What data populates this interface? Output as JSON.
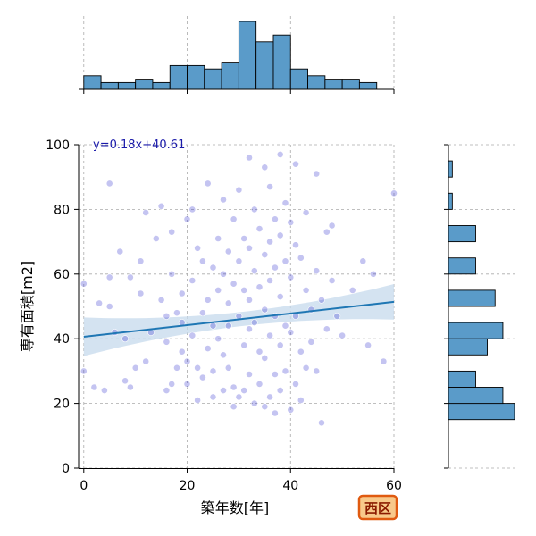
{
  "chart_data": {
    "type": "scatter",
    "xlabel": "築年数[年]",
    "ylabel": "専有面積[m2]",
    "annotation": "y=0.18x+40.61",
    "badge": "西区",
    "xlim": [
      -1,
      60
    ],
    "ylim": [
      0,
      100
    ],
    "x_ticks": [
      0,
      20,
      40,
      60
    ],
    "y_ticks": [
      0,
      20,
      40,
      60,
      80,
      100
    ],
    "grid": true,
    "regression": {
      "slope": 0.18,
      "intercept": 40.61
    },
    "colors": {
      "points": "#3a3acf",
      "hist": "#5a9bc9",
      "line": "#1f77b4",
      "band": "#c6d9ec",
      "annotation": "#1a1aaa",
      "badge_fill": "#f8c98a",
      "badge_border": "#e05a10",
      "badge_text": "#8a1a00"
    },
    "top_histogram": {
      "bin_edges": [
        0,
        3.33,
        6.67,
        10,
        13.33,
        16.67,
        20,
        23.33,
        26.67,
        30,
        33.33,
        36.67,
        40,
        43.33,
        46.67,
        50,
        53.33,
        56.67,
        60
      ],
      "counts": [
        4,
        2,
        2,
        3,
        2,
        7,
        7,
        6,
        8,
        20,
        14,
        16,
        6,
        4,
        3,
        3,
        2,
        0
      ]
    },
    "right_histogram": {
      "bin_edges": [
        15,
        20,
        25,
        30,
        35,
        40,
        45,
        50,
        55,
        60,
        65,
        70,
        75,
        80,
        85,
        90,
        95
      ],
      "counts": [
        17,
        14,
        7,
        0,
        10,
        14,
        0,
        12,
        0,
        7,
        0,
        7,
        0,
        1,
        0,
        1
      ]
    },
    "points": [
      [
        0,
        30
      ],
      [
        0,
        57
      ],
      [
        2,
        25
      ],
      [
        3,
        51
      ],
      [
        4,
        24
      ],
      [
        5,
        59
      ],
      [
        5,
        88
      ],
      [
        5,
        50
      ],
      [
        6,
        42
      ],
      [
        7,
        67
      ],
      [
        8,
        27
      ],
      [
        8,
        40
      ],
      [
        9,
        59
      ],
      [
        9,
        25
      ],
      [
        10,
        31
      ],
      [
        11,
        64
      ],
      [
        11,
        54
      ],
      [
        12,
        33
      ],
      [
        12,
        79
      ],
      [
        13,
        42
      ],
      [
        14,
        71
      ],
      [
        15,
        81
      ],
      [
        15,
        52
      ],
      [
        16,
        47
      ],
      [
        16,
        39
      ],
      [
        16,
        24
      ],
      [
        17,
        60
      ],
      [
        17,
        73
      ],
      [
        17,
        26
      ],
      [
        18,
        31
      ],
      [
        18,
        48
      ],
      [
        19,
        54
      ],
      [
        19,
        45
      ],
      [
        19,
        36
      ],
      [
        20,
        33
      ],
      [
        20,
        77
      ],
      [
        20,
        26
      ],
      [
        21,
        80
      ],
      [
        21,
        58
      ],
      [
        21,
        41
      ],
      [
        22,
        31
      ],
      [
        22,
        68
      ],
      [
        22,
        21
      ],
      [
        23,
        64
      ],
      [
        23,
        48
      ],
      [
        23,
        28
      ],
      [
        24,
        88
      ],
      [
        24,
        52
      ],
      [
        24,
        37
      ],
      [
        25,
        62
      ],
      [
        25,
        44
      ],
      [
        25,
        30
      ],
      [
        25,
        22
      ],
      [
        26,
        71
      ],
      [
        26,
        55
      ],
      [
        26,
        40
      ],
      [
        27,
        83
      ],
      [
        27,
        60
      ],
      [
        27,
        35
      ],
      [
        27,
        24
      ],
      [
        28,
        67
      ],
      [
        28,
        51
      ],
      [
        28,
        44
      ],
      [
        28,
        31
      ],
      [
        29,
        77
      ],
      [
        29,
        57
      ],
      [
        29,
        25
      ],
      [
        29,
        19
      ],
      [
        30,
        86
      ],
      [
        30,
        64
      ],
      [
        30,
        47
      ],
      [
        30,
        22
      ],
      [
        31,
        71
      ],
      [
        31,
        55
      ],
      [
        31,
        38
      ],
      [
        31,
        24
      ],
      [
        32,
        96
      ],
      [
        32,
        68
      ],
      [
        32,
        52
      ],
      [
        32,
        43
      ],
      [
        32,
        29
      ],
      [
        33,
        80
      ],
      [
        33,
        61
      ],
      [
        33,
        45
      ],
      [
        33,
        20
      ],
      [
        34,
        74
      ],
      [
        34,
        56
      ],
      [
        34,
        36
      ],
      [
        34,
        26
      ],
      [
        35,
        93
      ],
      [
        35,
        66
      ],
      [
        35,
        49
      ],
      [
        35,
        34
      ],
      [
        35,
        19
      ],
      [
        36,
        87
      ],
      [
        36,
        70
      ],
      [
        36,
        58
      ],
      [
        36,
        41
      ],
      [
        36,
        22
      ],
      [
        37,
        77
      ],
      [
        37,
        62
      ],
      [
        37,
        47
      ],
      [
        37,
        29
      ],
      [
        37,
        17
      ],
      [
        38,
        97
      ],
      [
        38,
        72
      ],
      [
        38,
        53
      ],
      [
        38,
        38
      ],
      [
        38,
        24
      ],
      [
        39,
        82
      ],
      [
        39,
        64
      ],
      [
        39,
        44
      ],
      [
        39,
        30
      ],
      [
        40,
        76
      ],
      [
        40,
        59
      ],
      [
        40,
        42
      ],
      [
        40,
        18
      ],
      [
        41,
        94
      ],
      [
        41,
        69
      ],
      [
        41,
        47
      ],
      [
        41,
        26
      ],
      [
        42,
        65
      ],
      [
        42,
        36
      ],
      [
        42,
        21
      ],
      [
        43,
        79
      ],
      [
        43,
        55
      ],
      [
        43,
        31
      ],
      [
        44,
        49
      ],
      [
        44,
        39
      ],
      [
        45,
        91
      ],
      [
        45,
        61
      ],
      [
        45,
        30
      ],
      [
        46,
        14
      ],
      [
        46,
        52
      ],
      [
        47,
        73
      ],
      [
        47,
        43
      ],
      [
        48,
        75
      ],
      [
        48,
        58
      ],
      [
        49,
        47
      ],
      [
        50,
        41
      ],
      [
        52,
        55
      ],
      [
        54,
        64
      ],
      [
        55,
        38
      ],
      [
        56,
        60
      ],
      [
        58,
        33
      ],
      [
        60,
        85
      ]
    ]
  }
}
